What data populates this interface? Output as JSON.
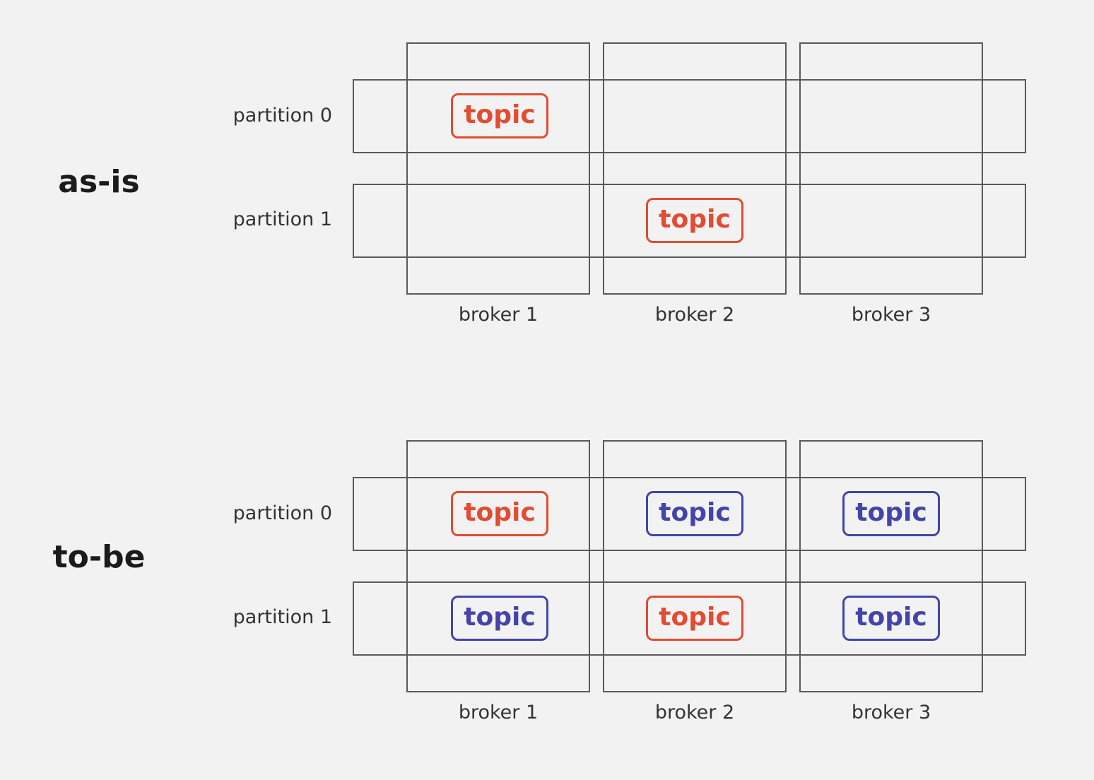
{
  "colors": {
    "leader": "#e14c32",
    "replica": "#4444aa"
  },
  "sections": [
    {
      "title": "as-is",
      "partitions": [
        "partition 0",
        "partition 1"
      ],
      "brokers": [
        "broker 1",
        "broker 2",
        "broker 3"
      ],
      "cells": [
        [
          {
            "label": "topic",
            "role": "leader"
          },
          null,
          null
        ],
        [
          null,
          {
            "label": "topic",
            "role": "leader"
          },
          null
        ]
      ]
    },
    {
      "title": "to-be",
      "partitions": [
        "partition 0",
        "partition 1"
      ],
      "brokers": [
        "broker 1",
        "broker 2",
        "broker 3"
      ],
      "cells": [
        [
          {
            "label": "topic",
            "role": "leader"
          },
          {
            "label": "topic",
            "role": "replica"
          },
          {
            "label": "topic",
            "role": "replica"
          }
        ],
        [
          {
            "label": "topic",
            "role": "replica"
          },
          {
            "label": "topic",
            "role": "leader"
          },
          {
            "label": "topic",
            "role": "replica"
          }
        ]
      ]
    }
  ]
}
